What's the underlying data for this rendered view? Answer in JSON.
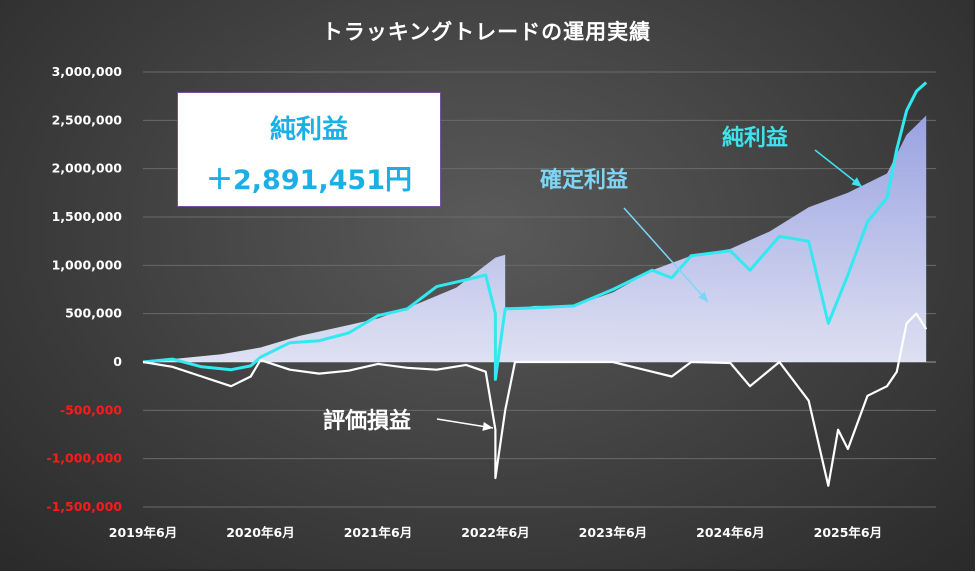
{
  "chart_data": {
    "type": "area",
    "title": "トラッキングトレードの運用実績",
    "ylim": [
      -1500000,
      3000000
    ],
    "y_ticks": [
      {
        "value": 3000000,
        "label": "3,000,000"
      },
      {
        "value": 2500000,
        "label": "2,500,000"
      },
      {
        "value": 2000000,
        "label": "2,000,000"
      },
      {
        "value": 1500000,
        "label": "1,500,000"
      },
      {
        "value": 1000000,
        "label": "1,000,000"
      },
      {
        "value": 500000,
        "label": "500,000"
      },
      {
        "value": 0,
        "label": "0"
      },
      {
        "value": -500000,
        "label": "-500,000"
      },
      {
        "value": -1000000,
        "label": "-1,000,000"
      },
      {
        "value": -1500000,
        "label": "-1,500,000"
      }
    ],
    "x_range": [
      "2019-06",
      "2026-03"
    ],
    "x_ticks": [
      {
        "date": "2019-06",
        "label": "2019年6月"
      },
      {
        "date": "2020-06",
        "label": "2020年6月"
      },
      {
        "date": "2021-06",
        "label": "2021年6月"
      },
      {
        "date": "2022-06",
        "label": "2022年6月"
      },
      {
        "date": "2023-06",
        "label": "2023年6月"
      },
      {
        "date": "2024-06",
        "label": "2024年6月"
      },
      {
        "date": "2025-06",
        "label": "2025年6月"
      }
    ],
    "grid": true,
    "series": [
      {
        "name": "確定利益",
        "kind": "area",
        "color": "#c5cbf2",
        "points": [
          [
            "2019-06",
            0
          ],
          [
            "2019-10",
            40000
          ],
          [
            "2020-02",
            80000
          ],
          [
            "2020-06",
            150000
          ],
          [
            "2020-10",
            270000
          ],
          [
            "2021-02",
            360000
          ],
          [
            "2021-06",
            450000
          ],
          [
            "2021-10",
            600000
          ],
          [
            "2022-02",
            770000
          ],
          [
            "2022-06",
            1080000
          ],
          [
            "2022-07",
            1110000
          ],
          [
            "2022-07",
            540000
          ],
          [
            "2022-10",
            580000
          ],
          [
            "2023-02",
            580000
          ],
          [
            "2023-06",
            720000
          ],
          [
            "2023-10",
            950000
          ],
          [
            "2024-02",
            1100000
          ],
          [
            "2024-06",
            1170000
          ],
          [
            "2024-10",
            1350000
          ],
          [
            "2025-02",
            1600000
          ],
          [
            "2025-06",
            1750000
          ],
          [
            "2025-10",
            1950000
          ],
          [
            "2025-12",
            2350000
          ],
          [
            "2026-02",
            2550000
          ]
        ]
      },
      {
        "name": "純利益",
        "kind": "line",
        "color": "#33e8f0",
        "points": [
          [
            "2019-06",
            0
          ],
          [
            "2019-09",
            30000
          ],
          [
            "2019-12",
            -50000
          ],
          [
            "2020-03",
            -80000
          ],
          [
            "2020-05",
            -40000
          ],
          [
            "2020-06",
            50000
          ],
          [
            "2020-09",
            200000
          ],
          [
            "2020-12",
            220000
          ],
          [
            "2021-03",
            300000
          ],
          [
            "2021-06",
            480000
          ],
          [
            "2021-09",
            550000
          ],
          [
            "2021-12",
            780000
          ],
          [
            "2022-03",
            850000
          ],
          [
            "2022-05",
            900000
          ],
          [
            "2022-06",
            500000
          ],
          [
            "2022-06",
            -180000
          ],
          [
            "2022-07",
            550000
          ],
          [
            "2022-10",
            560000
          ],
          [
            "2023-02",
            580000
          ],
          [
            "2023-06",
            750000
          ],
          [
            "2023-10",
            950000
          ],
          [
            "2023-12",
            870000
          ],
          [
            "2024-02",
            1100000
          ],
          [
            "2024-06",
            1150000
          ],
          [
            "2024-08",
            950000
          ],
          [
            "2024-11",
            1300000
          ],
          [
            "2025-02",
            1250000
          ],
          [
            "2025-04",
            400000
          ],
          [
            "2025-05",
            650000
          ],
          [
            "2025-06",
            900000
          ],
          [
            "2025-08",
            1450000
          ],
          [
            "2025-10",
            1700000
          ],
          [
            "2025-11",
            2200000
          ],
          [
            "2025-12",
            2600000
          ],
          [
            "2026-01",
            2800000
          ],
          [
            "2026-02",
            2891451
          ]
        ]
      },
      {
        "name": "評価損益",
        "kind": "line",
        "color": "#ffffff",
        "points": [
          [
            "2019-06",
            0
          ],
          [
            "2019-09",
            -50000
          ],
          [
            "2019-12",
            -150000
          ],
          [
            "2020-03",
            -250000
          ],
          [
            "2020-05",
            -150000
          ],
          [
            "2020-06",
            20000
          ],
          [
            "2020-09",
            -80000
          ],
          [
            "2020-12",
            -120000
          ],
          [
            "2021-03",
            -90000
          ],
          [
            "2021-06",
            -20000
          ],
          [
            "2021-09",
            -60000
          ],
          [
            "2021-12",
            -80000
          ],
          [
            "2022-03",
            -30000
          ],
          [
            "2022-05",
            -100000
          ],
          [
            "2022-06",
            -700000
          ],
          [
            "2022-06",
            -1200000
          ],
          [
            "2022-07",
            -500000
          ],
          [
            "2022-08",
            0
          ],
          [
            "2023-02",
            0
          ],
          [
            "2023-06",
            0
          ],
          [
            "2023-10",
            -100000
          ],
          [
            "2023-12",
            -150000
          ],
          [
            "2024-02",
            0
          ],
          [
            "2024-06",
            -10000
          ],
          [
            "2024-08",
            -250000
          ],
          [
            "2024-11",
            0
          ],
          [
            "2025-02",
            -400000
          ],
          [
            "2025-04",
            -1280000
          ],
          [
            "2025-05",
            -700000
          ],
          [
            "2025-06",
            -900000
          ],
          [
            "2025-08",
            -350000
          ],
          [
            "2025-10",
            -250000
          ],
          [
            "2025-11",
            -100000
          ],
          [
            "2025-12",
            400000
          ],
          [
            "2026-01",
            500000
          ],
          [
            "2026-02",
            340000
          ]
        ]
      }
    ],
    "annotations": [
      "純利益",
      "確定利益",
      "評価損益"
    ]
  },
  "profit_box": {
    "title": "純利益",
    "value": "＋2,891,451円"
  },
  "colors": {
    "positive_label": "#ffffff",
    "negative_label": "#ff1a1a",
    "net_profit": "#33e8f0",
    "realized_area": "#c5cbf2",
    "unrealized": "#ffffff",
    "box_text": "#1ab0e6"
  }
}
